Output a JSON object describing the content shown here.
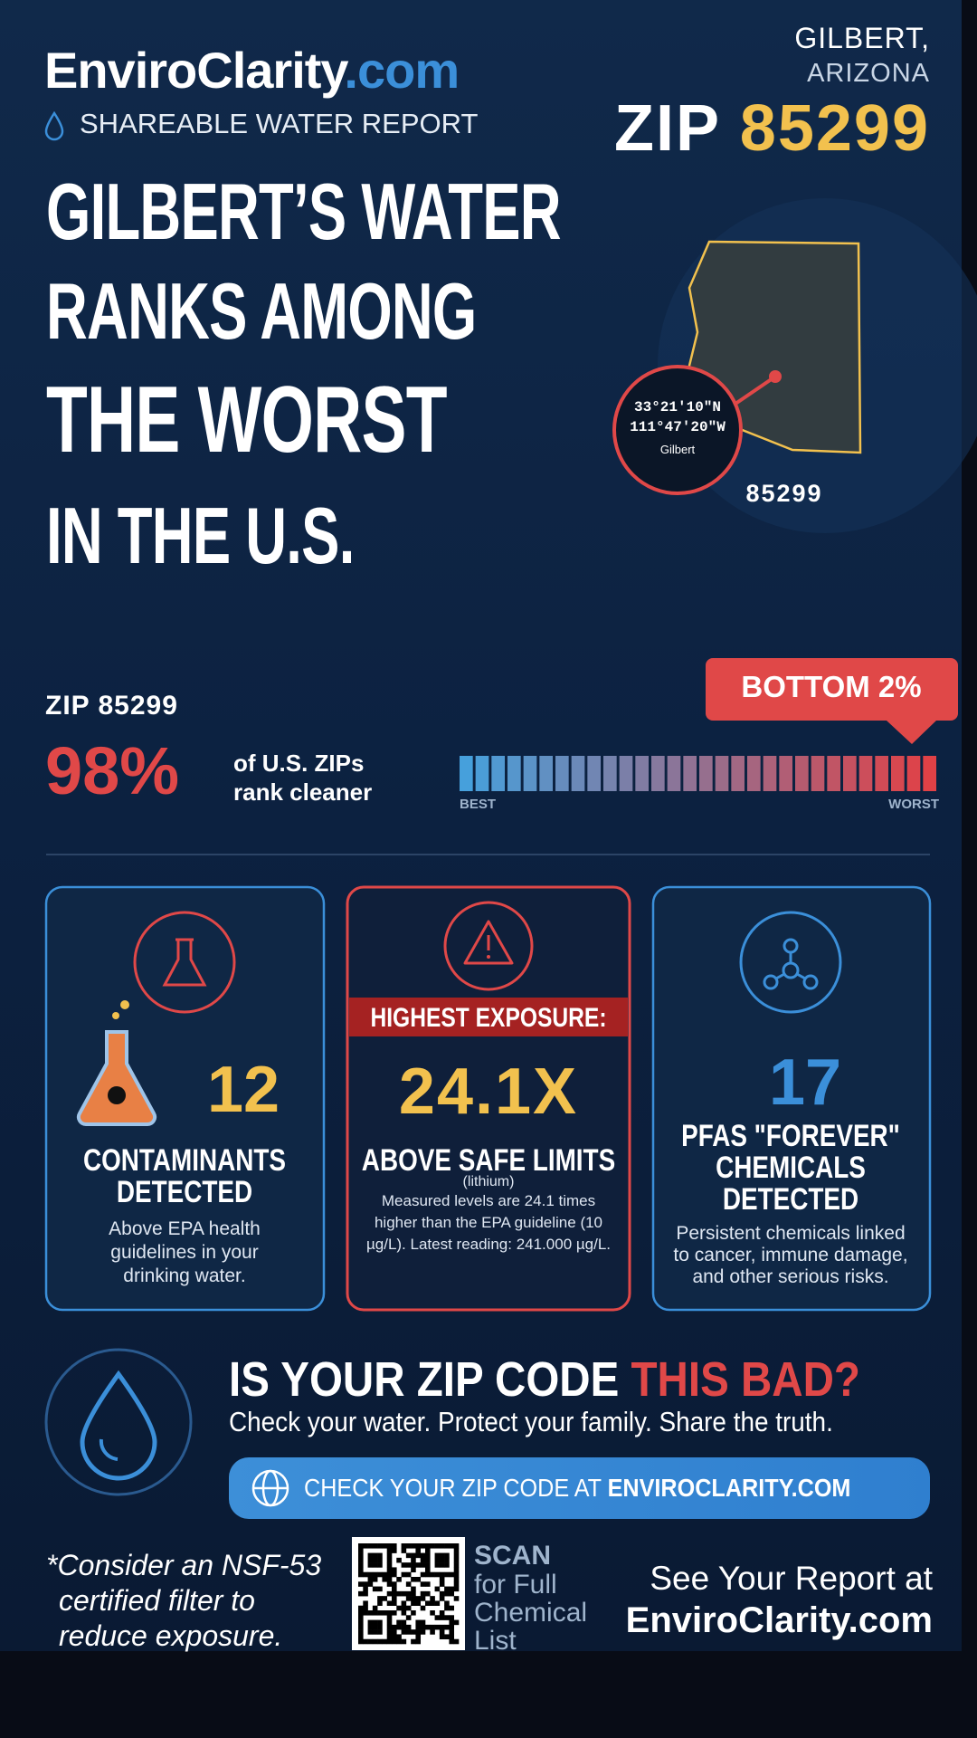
{
  "header": {
    "brand": "EnviroClarity",
    "brand_suffix": ".com",
    "subtitle": "SHAREABLE WATER REPORT",
    "city": "GILBERT,",
    "state": "ARIZONA",
    "zip_label": "ZIP",
    "zip": "85299"
  },
  "headline": [
    "GILBERT’S WATER",
    "RANKS AMONG",
    "THE WORST",
    "IN THE U.S."
  ],
  "map": {
    "latitude": "33°21′10″N",
    "longitude": "111°47′20″W",
    "place": "Gilbert",
    "zip": "85299"
  },
  "ranking": {
    "zip_label": "ZIP 85299",
    "percent": "98%",
    "description": [
      "of U.S. ZIPs",
      "rank cleaner"
    ],
    "badge": "BOTTOM 2%",
    "scale_start": "BEST",
    "scale_end": "WORST"
  },
  "cards": [
    {
      "value": "12",
      "title": [
        "CONTAMINANTS",
        "DETECTED"
      ],
      "text": [
        "Above EPA health",
        "guidelines in your",
        "drinking water."
      ]
    },
    {
      "banner": "HIGHEST EXPOSURE:",
      "value": "24.1X",
      "title": [
        "ABOVE SAFE LIMITS"
      ],
      "subtitle": "(lithium)",
      "text": [
        "Measured levels are 24.1 times",
        "higher than the EPA guideline (10",
        "µg/L). Latest reading: 241.000 µg/L."
      ]
    },
    {
      "value": "17",
      "title": [
        "PFAS \"FOREVER\"",
        "CHEMICALS",
        "DETECTED"
      ],
      "text": [
        "Persistent chemicals linked",
        "to cancer, immune damage,",
        "and other serious risks."
      ]
    }
  ],
  "cta": {
    "question": "IS YOUR ZIP CODE",
    "question_highlight": "THIS BAD?",
    "tagline": "Check your water. Protect your family. Share the truth.",
    "button": "CHECK YOUR ZIP CODE AT",
    "button_highlight": "ENVIROCLARITY.COM"
  },
  "footer": {
    "note": [
      "*Consider an NSF-53",
      "certified filter to",
      "reduce exposure."
    ],
    "scan": [
      "SCAN",
      "for Full",
      "Chemical",
      "List"
    ],
    "report": "See Your Report at",
    "report_site": "EnviroClarity.com"
  }
}
